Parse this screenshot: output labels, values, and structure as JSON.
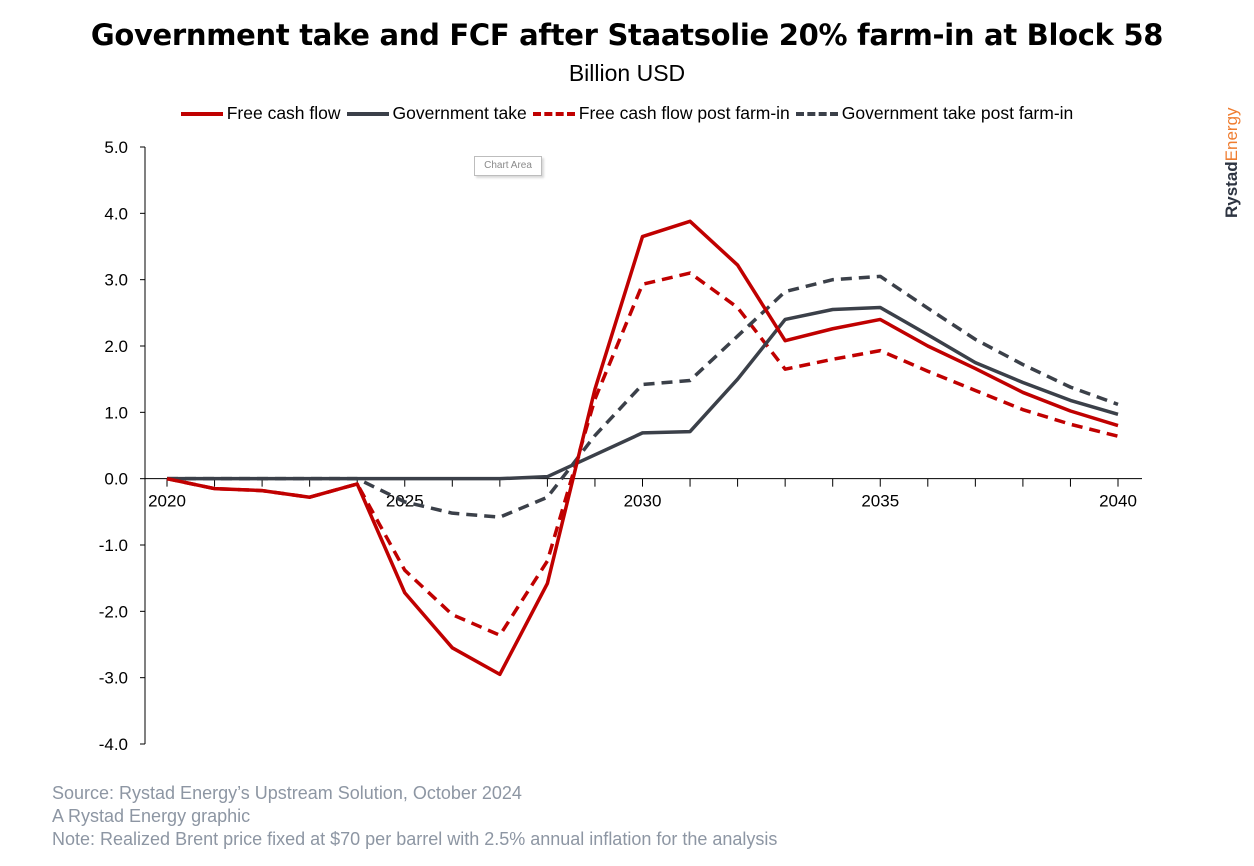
{
  "title": "Government take and FCF after Staatsolie 20% farm-in at Block 58",
  "subtitle": "Billion USD",
  "chart_area_label": "Chart Area",
  "brand": {
    "part1": "Rystad",
    "part2": "Energy",
    "color1": "#2d3441",
    "color2": "#ef7d30"
  },
  "footer": {
    "source": "Source: Rystad Energy’s Upstream Solution, October 2024",
    "graphic": "A Rystad Energy graphic",
    "note": "Note: Realized Brent price fixed at $70 per barrel with 2.5% annual inflation for the analysis"
  },
  "chart_data": {
    "type": "line",
    "title": "Government take and FCF after Staatsolie 20% farm-in at Block 58",
    "subtitle": "Billion USD",
    "ylim": [
      -4.0,
      5.0
    ],
    "yticks": [
      "5.0",
      "4.0",
      "3.0",
      "2.0",
      "1.0",
      "0.0",
      "-1.0",
      "-2.0",
      "-3.0",
      "-4.0"
    ],
    "xlim": [
      2020,
      2040
    ],
    "xticks": [
      "2020",
      "2025",
      "2030",
      "2035",
      "2040"
    ],
    "legend_position": "top",
    "grid": false,
    "x": [
      2020,
      2021,
      2022,
      2023,
      2024,
      2025,
      2026,
      2027,
      2028,
      2029,
      2030,
      2031,
      2032,
      2033,
      2034,
      2035,
      2036,
      2037,
      2038,
      2039,
      2040
    ],
    "series": [
      {
        "name": "Free cash flow",
        "color": "#c00000",
        "dash": false,
        "values": [
          0.0,
          -0.15,
          -0.18,
          -0.28,
          -0.08,
          -1.72,
          -2.55,
          -2.95,
          -1.58,
          1.35,
          3.65,
          3.88,
          3.22,
          2.08,
          2.26,
          2.4,
          2.0,
          1.66,
          1.3,
          1.02,
          0.8
        ]
      },
      {
        "name": "Government take",
        "color": "#3b4049",
        "dash": false,
        "values": [
          0.0,
          0.0,
          0.0,
          0.0,
          0.0,
          0.0,
          0.0,
          0.0,
          0.03,
          0.36,
          0.69,
          0.71,
          1.5,
          2.4,
          2.55,
          2.58,
          2.17,
          1.75,
          1.45,
          1.18,
          0.97
        ]
      },
      {
        "name": "Free cash flow post farm-in",
        "color": "#c00000",
        "dash": true,
        "values": [
          0.0,
          -0.15,
          -0.18,
          -0.28,
          -0.08,
          -1.38,
          -2.05,
          -2.36,
          -1.24,
          1.2,
          2.93,
          3.1,
          2.58,
          1.65,
          1.8,
          1.93,
          1.62,
          1.33,
          1.04,
          0.82,
          0.64
        ]
      },
      {
        "name": "Government take post farm-in",
        "color": "#3b4049",
        "dash": true,
        "values": [
          0.0,
          0.0,
          0.0,
          0.0,
          0.0,
          -0.35,
          -0.52,
          -0.58,
          -0.28,
          0.65,
          1.42,
          1.48,
          2.15,
          2.82,
          3.0,
          3.05,
          2.57,
          2.1,
          1.72,
          1.38,
          1.12
        ]
      }
    ]
  }
}
